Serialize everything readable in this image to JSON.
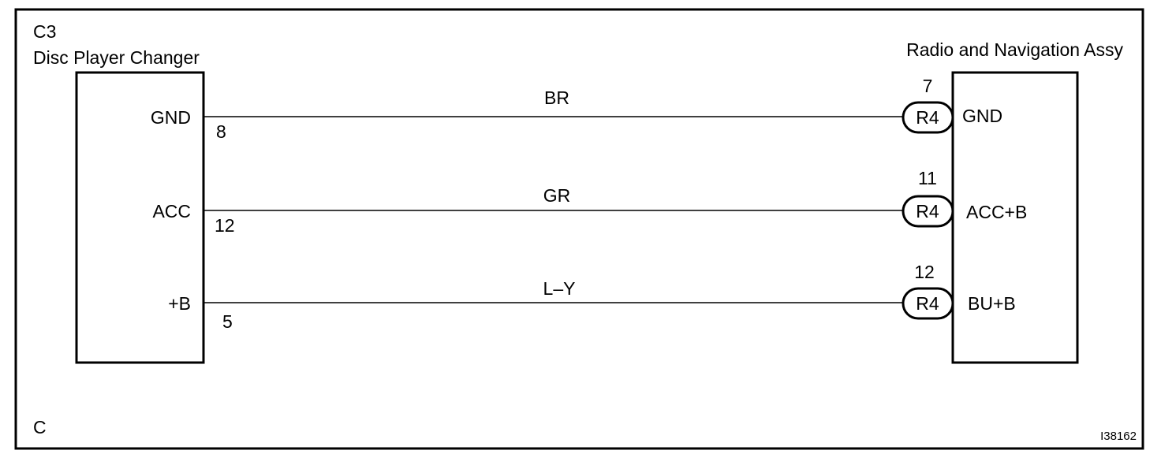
{
  "left_component": {
    "code": "C3",
    "name": "Disc Player Changer",
    "pins": [
      {
        "label": "GND",
        "number": "8"
      },
      {
        "label": "ACC",
        "number": "12"
      },
      {
        "label": "+B",
        "number": "5"
      }
    ]
  },
  "right_component": {
    "name": "Radio and Navigation Assy",
    "pins": [
      {
        "label": "GND",
        "number": "7",
        "connector": "R4"
      },
      {
        "label": "ACC+B",
        "number": "11",
        "connector": "R4"
      },
      {
        "label": "BU+B",
        "number": "12",
        "connector": "R4"
      }
    ]
  },
  "wires": [
    {
      "color_code": "BR"
    },
    {
      "color_code": "GR"
    },
    {
      "color_code": "L–Y"
    }
  ],
  "corner_label": "C",
  "figure_id": "I38162"
}
